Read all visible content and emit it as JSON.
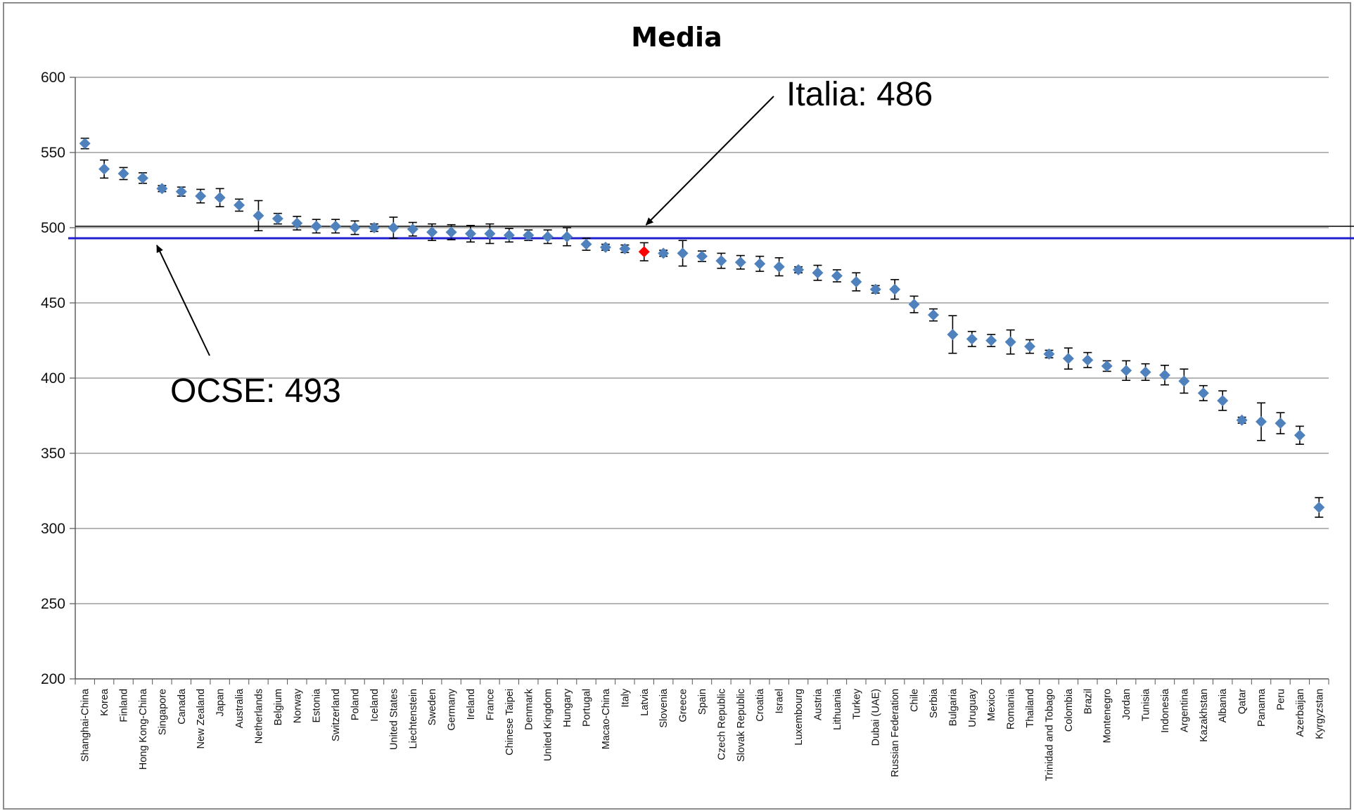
{
  "chart_data": {
    "type": "scatter",
    "title": "Media",
    "xlabel": "",
    "ylabel": "",
    "ylim": [
      200,
      600
    ],
    "yticks": [
      "600",
      "550",
      "500",
      "450",
      "400",
      "350",
      "300",
      "250",
      "200"
    ],
    "grid": true,
    "legend": "none",
    "point_color": "#4f81bd",
    "highlight_color": "#ff0000",
    "oecd_line_color": "#1f1fcf",
    "reference_line_color": "#000000",
    "categories": [
      "Shanghai-China",
      "Korea",
      "Finland",
      "Hong Kong-China",
      "Singapore",
      "Canada",
      "New Zealand",
      "Japan",
      "Australia",
      "Netherlands",
      "Belgium",
      "Norway",
      "Estonia",
      "Switzerland",
      "Poland",
      "Iceland",
      "United States",
      "Liechtenstein",
      "Sweden",
      "Germany",
      "Ireland",
      "France",
      "Chinese Taipei",
      "Denmark",
      "United Kingdom",
      "Hungary",
      "Portugal",
      "Macao-China",
      "Italy",
      "Latvia",
      "Slovenia",
      "Greece",
      "Spain",
      "Czech Republic",
      "Slovak Republic",
      "Croatia",
      "Israel",
      "Luxembourg",
      "Austria",
      "Lithuania",
      "Turkey",
      "Dubai (UAE)",
      "Russian Federation",
      "Chile",
      "Serbia",
      "Bulgaria",
      "Uruguay",
      "Mexico",
      "Romania",
      "Thailand",
      "Trinidad and Tobago",
      "Colombia",
      "Brazil",
      "Montenegro",
      "Jordan",
      "Tunisia",
      "Indonesia",
      "Argentina",
      "Kazakhstan",
      "Albania",
      "Qatar",
      "Panama",
      "Peru",
      "Azerbaijan",
      "Kyrgyzstan"
    ],
    "values": [
      556,
      539,
      536,
      533,
      526,
      524,
      521,
      520,
      515,
      508,
      506,
      503,
      501,
      501,
      500,
      500,
      500,
      499,
      497,
      497,
      496,
      496,
      495,
      495,
      494,
      494,
      489,
      487,
      486,
      484,
      483,
      483,
      481,
      478,
      477,
      476,
      474,
      472,
      470,
      468,
      464,
      459,
      459,
      449,
      442,
      429,
      426,
      425,
      424,
      421,
      416,
      413,
      412,
      408,
      405,
      404,
      402,
      398,
      390,
      385,
      372,
      371,
      370,
      362,
      314
    ],
    "errors": [
      3.5,
      6,
      4,
      3.5,
      2,
      3,
      4.5,
      6,
      4,
      10,
      3.5,
      4.5,
      4.5,
      4.5,
      4.5,
      2.5,
      7,
      4.5,
      5.5,
      5,
      5.5,
      6.5,
      4.5,
      3.5,
      4.5,
      6,
      4,
      2,
      2.5,
      6,
      2,
      8.5,
      3.5,
      5,
      4.5,
      5,
      6,
      2,
      5,
      4,
      6,
      2.5,
      6.5,
      5.5,
      4,
      12.5,
      5,
      4,
      8,
      4.5,
      2.5,
      7,
      5,
      3.5,
      6.5,
      5.5,
      6.5,
      8,
      5,
      6.5,
      2,
      12.5,
      7,
      6,
      6.5
    ],
    "highlight": "Latvia",
    "oecd_average": 493,
    "reference_line": 500,
    "annotations": [
      {
        "text": "Italia: 486",
        "target": "Italy"
      },
      {
        "text": "OCSE: 493",
        "target": "oecd_average"
      }
    ]
  }
}
